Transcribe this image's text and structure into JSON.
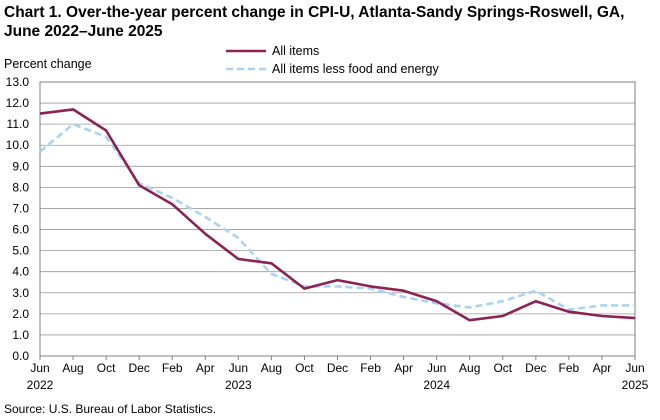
{
  "chart_data": {
    "type": "line",
    "title": "Chart 1. Over-the-year percent change in CPI-U, Atlanta-Sandy Springs-Roswell, GA, June 2022–June 2025",
    "ylabel": "Percent change",
    "xlabel": "",
    "ylim": [
      0.0,
      13.0
    ],
    "yticks": [
      "0.0",
      "1.0",
      "2.0",
      "3.0",
      "4.0",
      "5.0",
      "6.0",
      "7.0",
      "8.0",
      "9.0",
      "10.0",
      "11.0",
      "12.0",
      "13.0"
    ],
    "x_month_labels": [
      "Jun",
      "Aug",
      "Oct",
      "Dec",
      "Feb",
      "Apr",
      "Jun",
      "Aug",
      "Oct",
      "Dec",
      "Feb",
      "Apr",
      "Jun",
      "Aug",
      "Oct",
      "Dec",
      "Feb",
      "Apr",
      "Jun"
    ],
    "x_year_labels": [
      "2022",
      "",
      "",
      "",
      "",
      "",
      "2023",
      "",
      "",
      "",
      "",
      "",
      "2024",
      "",
      "",
      "",
      "",
      "",
      "2025"
    ],
    "grid": true,
    "legend": "top-center",
    "series": [
      {
        "name": "All items",
        "color": "#8b2252",
        "style": "solid",
        "values": [
          11.5,
          11.7,
          10.7,
          8.1,
          7.2,
          5.8,
          4.6,
          4.4,
          3.2,
          3.6,
          3.3,
          3.1,
          2.6,
          1.7,
          1.9,
          2.6,
          2.1,
          1.9,
          1.8
        ]
      },
      {
        "name": "All items less food and energy",
        "color": "#a9d3f5",
        "style": "dashed",
        "values": [
          9.7,
          11.0,
          10.4,
          8.2,
          7.5,
          6.6,
          5.6,
          3.9,
          3.3,
          3.3,
          3.2,
          2.8,
          2.5,
          2.3,
          2.6,
          3.1,
          2.2,
          2.4,
          2.4
        ]
      }
    ]
  },
  "source": "Source: U.S. Bureau of Labor Statistics."
}
